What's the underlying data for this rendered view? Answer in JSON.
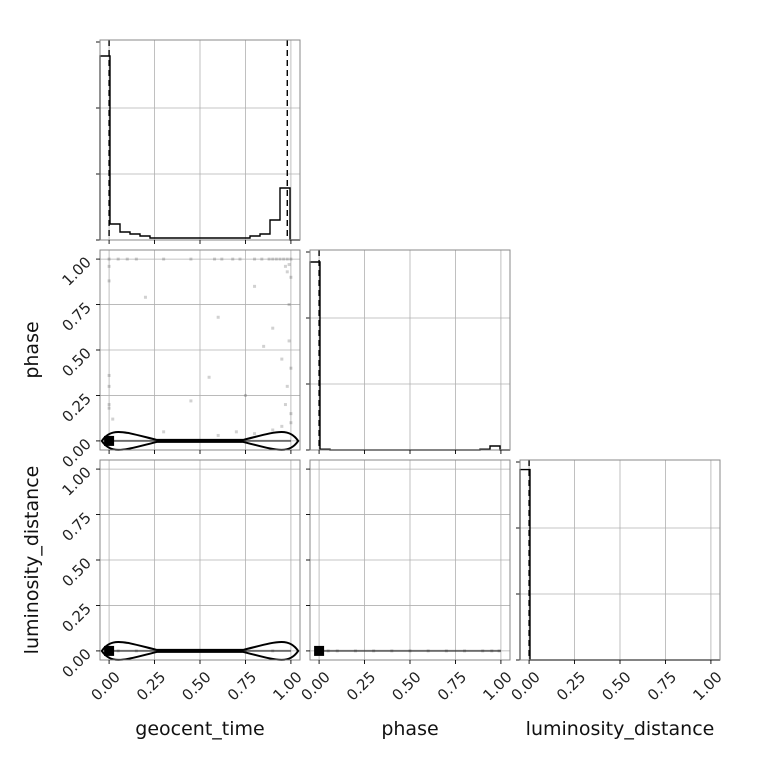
{
  "chart_data": {
    "type": "scatter",
    "title": "",
    "parameters": [
      "geocent_time",
      "phase",
      "luminosity_distance"
    ],
    "range": [
      -0.05,
      1.05
    ],
    "ticks": [
      0.0,
      0.25,
      0.5,
      0.75,
      1.0
    ],
    "tick_labels": [
      "0.00",
      "0.25",
      "0.50",
      "0.75",
      "1.00"
    ],
    "grid": true,
    "truths": [
      {
        "param": "geocent_time",
        "values": [
          0.0,
          0.98
        ]
      },
      {
        "param": "phase",
        "values": [
          0.0
        ]
      },
      {
        "param": "luminosity_distance",
        "values": [
          0.0
        ]
      }
    ],
    "histograms": [
      {
        "param": "geocent_time",
        "ymax": 1.0,
        "edges": [
          -0.05,
          0.005,
          0.06,
          0.115,
          0.17,
          0.225,
          0.28,
          0.335,
          0.39,
          0.445,
          0.5,
          0.555,
          0.61,
          0.665,
          0.72,
          0.775,
          0.83,
          0.885,
          0.94,
          0.995,
          1.05
        ],
        "counts": [
          0.92,
          0.08,
          0.04,
          0.03,
          0.02,
          0.01,
          0.01,
          0.01,
          0.01,
          0.01,
          0.01,
          0.01,
          0.01,
          0.01,
          0.01,
          0.02,
          0.03,
          0.1,
          0.26,
          0.0
        ]
      },
      {
        "param": "phase",
        "ymax": 1.0,
        "edges": [
          -0.05,
          0.005,
          0.06,
          0.115,
          0.17,
          0.225,
          0.28,
          0.335,
          0.39,
          0.445,
          0.5,
          0.555,
          0.61,
          0.665,
          0.72,
          0.775,
          0.83,
          0.885,
          0.94,
          0.995,
          1.05
        ],
        "counts": [
          0.94,
          0.004,
          0.0,
          0.0,
          0.0,
          0.0,
          0.0,
          0.0,
          0.0,
          0.0,
          0.0,
          0.0,
          0.0,
          0.0,
          0.0,
          0.0,
          0.0,
          0.004,
          0.02,
          0.0
        ]
      },
      {
        "param": "luminosity_distance",
        "ymax": 1.05,
        "edges": [
          -0.05,
          0.005,
          0.06,
          0.115,
          0.17,
          0.225,
          0.28,
          0.335,
          0.39,
          0.445,
          0.5,
          0.555,
          0.61,
          0.665,
          0.72,
          0.775,
          0.83,
          0.885,
          0.94,
          0.995,
          1.05
        ],
        "counts": [
          1.0,
          0.0,
          0.0,
          0.0,
          0.0,
          0.0,
          0.0,
          0.0,
          0.0,
          0.0,
          0.0,
          0.0,
          0.0,
          0.0,
          0.0,
          0.0,
          0.0,
          0.0,
          0.0,
          0.0
        ]
      }
    ],
    "scatter_panels": [
      {
        "x": "geocent_time",
        "y": "phase",
        "points": [
          [
            0.0,
            1.0
          ],
          [
            0.05,
            1.0
          ],
          [
            0.1,
            1.0
          ],
          [
            0.15,
            1.0
          ],
          [
            0.3,
            1.0
          ],
          [
            0.45,
            1.0
          ],
          [
            0.58,
            1.0
          ],
          [
            0.62,
            1.0
          ],
          [
            0.68,
            1.0
          ],
          [
            0.72,
            1.0
          ],
          [
            0.8,
            1.0
          ],
          [
            0.84,
            1.0
          ],
          [
            0.88,
            1.0
          ],
          [
            0.9,
            1.0
          ],
          [
            0.92,
            1.0
          ],
          [
            0.94,
            1.0
          ],
          [
            0.96,
            1.0
          ],
          [
            0.98,
            1.0
          ],
          [
            1.0,
            1.0
          ],
          [
            0.0,
            0.96
          ],
          [
            0.0,
            0.88
          ],
          [
            0.0,
            0.36
          ],
          [
            0.0,
            0.3
          ],
          [
            0.0,
            0.2
          ],
          [
            0.0,
            0.18
          ],
          [
            0.02,
            0.12
          ],
          [
            0.2,
            0.79
          ],
          [
            0.6,
            0.68
          ],
          [
            0.8,
            0.85
          ],
          [
            0.85,
            0.52
          ],
          [
            0.9,
            0.62
          ],
          [
            0.95,
            0.45
          ],
          [
            0.97,
            0.2
          ],
          [
            0.98,
            0.3
          ],
          [
            0.99,
            0.75
          ],
          [
            0.99,
            0.55
          ],
          [
            1.0,
            0.9
          ],
          [
            1.0,
            0.4
          ],
          [
            1.0,
            0.15
          ],
          [
            1.0,
            0.1
          ],
          [
            0.97,
            0.96
          ],
          [
            0.99,
            0.97
          ],
          [
            0.98,
            0.93
          ],
          [
            0.55,
            0.35
          ],
          [
            0.75,
            0.25
          ],
          [
            0.45,
            0.22
          ],
          [
            0.7,
            0.05
          ],
          [
            0.3,
            0.05
          ],
          [
            0.6,
            0.03
          ],
          [
            0.8,
            0.04
          ],
          [
            0.9,
            0.06
          ],
          [
            0.95,
            0.08
          ]
        ],
        "contours": [
          {
            "shape": "horizontal-band",
            "x_min": -0.04,
            "x_max": 1.04,
            "y_center": 0.0,
            "y_halfwidth": 0.04
          }
        ],
        "density_peak": [
          0.0,
          0.0
        ]
      },
      {
        "x": "geocent_time",
        "y": "luminosity_distance",
        "points": [
          [
            0.05,
            0.0
          ],
          [
            0.15,
            0.0
          ],
          [
            0.3,
            0.0
          ],
          [
            0.45,
            0.0
          ],
          [
            0.6,
            0.0
          ],
          [
            0.75,
            0.0
          ],
          [
            0.9,
            0.0
          ]
        ],
        "contours": [
          {
            "shape": "horizontal-band",
            "x_min": -0.04,
            "x_max": 1.04,
            "y_center": 0.0,
            "y_halfwidth": 0.04
          }
        ],
        "density_peak": [
          0.0,
          0.0
        ]
      },
      {
        "x": "phase",
        "y": "luminosity_distance",
        "points": [
          [
            0.05,
            0.0
          ],
          [
            0.1,
            0.0
          ],
          [
            0.2,
            0.0
          ],
          [
            0.3,
            0.0
          ],
          [
            0.4,
            0.0
          ],
          [
            0.5,
            0.0
          ],
          [
            0.6,
            0.0
          ],
          [
            0.7,
            0.0
          ],
          [
            0.8,
            0.0
          ],
          [
            0.9,
            0.0
          ],
          [
            0.95,
            0.0
          ],
          [
            0.99,
            0.0
          ]
        ],
        "contours": [],
        "density_peak": [
          0.0,
          0.0
        ]
      }
    ]
  }
}
